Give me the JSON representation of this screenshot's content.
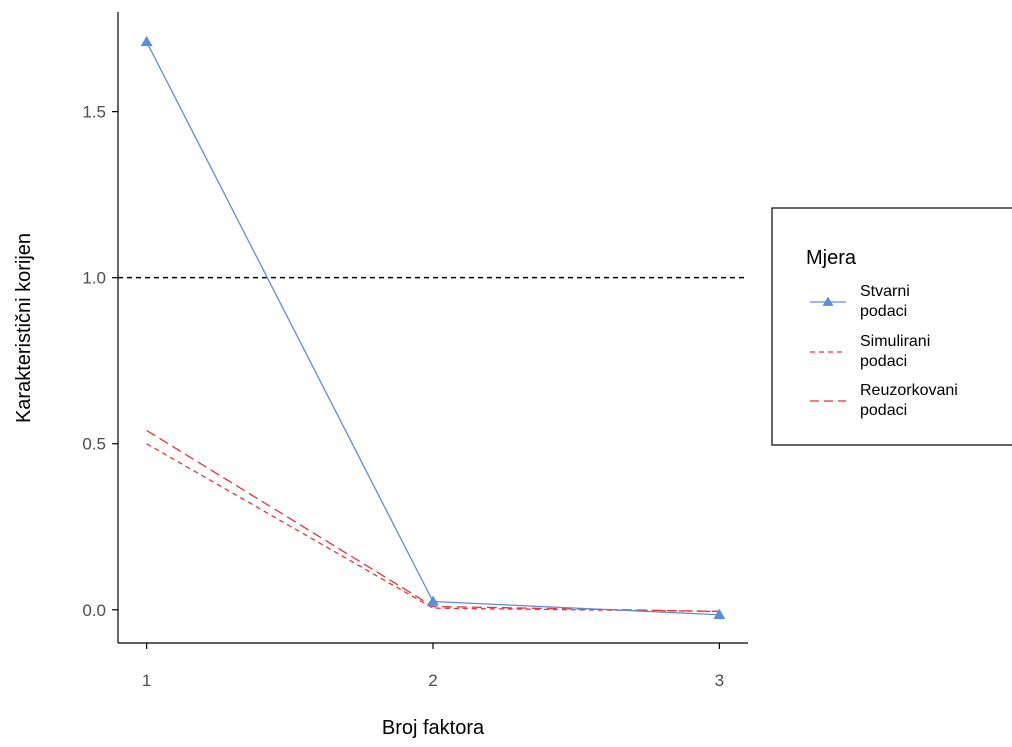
{
  "chart_data": {
    "type": "line",
    "title": "",
    "xlabel": "Broj faktora",
    "ylabel": "Karakteristični korijen",
    "x": [
      1,
      2,
      3
    ],
    "x_ticks": [
      "1",
      "2",
      "3"
    ],
    "y_ticks": [
      "0.0",
      "0.5",
      "1.0",
      "1.5"
    ],
    "xlim": [
      0.9,
      3.1
    ],
    "ylim": [
      -0.1,
      1.8
    ],
    "reference_line": {
      "y": 1.0,
      "style": "dashed",
      "color": "#000000"
    },
    "grid": false,
    "legend_position": "right",
    "legend_title": "Mjera",
    "series": [
      {
        "name_line1": "Stvarni",
        "name_line2": "podaci",
        "values": [
          1.71,
          0.025,
          -0.015
        ],
        "color": "#5b8dd9",
        "dash": "none",
        "marker": "triangle"
      },
      {
        "name_line1": "Simulirani",
        "name_line2": "podaci",
        "values": [
          0.5,
          0.005,
          -0.005
        ],
        "color": "#e8343c",
        "dash": "5,4",
        "marker": "none"
      },
      {
        "name_line1": "Reuzorkovani",
        "name_line2": "podaci",
        "values": [
          0.54,
          0.01,
          -0.005
        ],
        "color": "#e8343c",
        "dash": "10,5",
        "marker": "none"
      }
    ]
  }
}
